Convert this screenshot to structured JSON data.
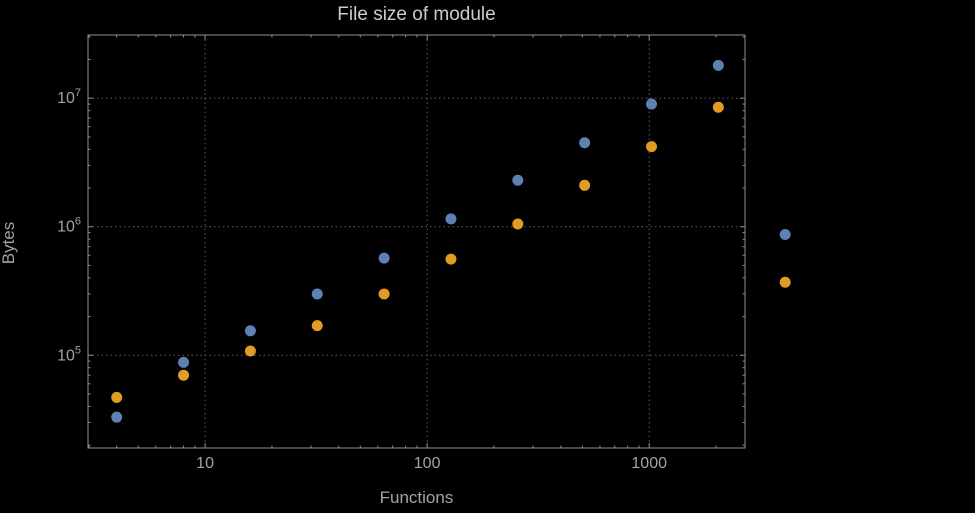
{
  "chart_data": {
    "type": "scatter",
    "title": "File size of module",
    "xlabel": "Functions",
    "ylabel": "Bytes",
    "xscale": "log",
    "yscale": "log",
    "grid": true,
    "legend": "none",
    "xlim": [
      2.97,
      2700
    ],
    "ylim": [
      19000,
      31000000
    ],
    "x": [
      4,
      8,
      16,
      32,
      64,
      128,
      256,
      512,
      1024,
      2048,
      4096
    ],
    "series": [
      {
        "name": "series-1-blue",
        "color": "#5e81b5",
        "values": [
          33000,
          88000,
          155000,
          300000,
          570000,
          1150000,
          2300000,
          4500000,
          9000000,
          18000000,
          870000
        ]
      },
      {
        "name": "series-2-orange",
        "color": "#e19c24",
        "values": [
          47000,
          70000,
          108000,
          170000,
          300000,
          560000,
          1050000,
          2100000,
          4200000,
          8500000,
          370000
        ]
      }
    ],
    "x_ticks": [
      {
        "value": 10,
        "label": "10"
      },
      {
        "value": 100,
        "label": "100"
      },
      {
        "value": 1000,
        "label": "1000"
      }
    ],
    "y_ticks": [
      {
        "value": 100000,
        "base": "10",
        "exp": "5"
      },
      {
        "value": 1000000,
        "base": "10",
        "exp": "6"
      },
      {
        "value": 10000000,
        "base": "10",
        "exp": "7"
      }
    ]
  },
  "colors": {
    "background": "#000000",
    "frame": "#8f8f8f",
    "grid": "#5f5f5f",
    "tick_label": "#a3a3a3",
    "title": "#cccccc",
    "axis_label": "#a3a3a3"
  }
}
